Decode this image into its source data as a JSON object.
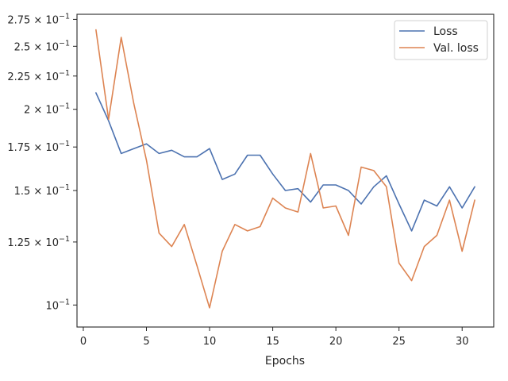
{
  "chart_data": {
    "type": "line",
    "xlabel": "Epochs",
    "ylabel": "",
    "yscale": "log",
    "xlim": [
      -0.5,
      32.5
    ],
    "ylim": [
      0.0925,
      0.28
    ],
    "grid": false,
    "legend_position": "top-right",
    "x_ticks": [
      0,
      5,
      10,
      15,
      20,
      25,
      30
    ],
    "x_tick_labels": [
      "0",
      "5",
      "10",
      "15",
      "20",
      "25",
      "30"
    ],
    "y_ticks": [
      0.1,
      0.125,
      0.15,
      0.175,
      0.2,
      0.225,
      0.25,
      0.275
    ],
    "y_tick_labels": [
      {
        "mantissa": "",
        "base": "10",
        "exp": "−1"
      },
      {
        "mantissa": "1.25 × ",
        "base": "10",
        "exp": "−1"
      },
      {
        "mantissa": "1.5 × ",
        "base": "10",
        "exp": "−1"
      },
      {
        "mantissa": "1.75 × ",
        "base": "10",
        "exp": "−1"
      },
      {
        "mantissa": "2 × ",
        "base": "10",
        "exp": "−1"
      },
      {
        "mantissa": "2.25 × ",
        "base": "10",
        "exp": "−1"
      },
      {
        "mantissa": "2.5 × ",
        "base": "10",
        "exp": "−1"
      },
      {
        "mantissa": "2.75 × ",
        "base": "10",
        "exp": "−1"
      }
    ],
    "x": [
      1,
      2,
      3,
      4,
      5,
      6,
      7,
      8,
      9,
      10,
      11,
      12,
      13,
      14,
      15,
      16,
      17,
      18,
      19,
      20,
      21,
      22,
      23,
      24,
      25,
      26,
      27,
      28,
      29,
      30,
      31
    ],
    "series": [
      {
        "name": "Loss",
        "color": "#4c72b0",
        "values": [
          0.212,
          0.192,
          0.171,
          0.174,
          0.177,
          0.171,
          0.173,
          0.169,
          0.169,
          0.174,
          0.156,
          0.159,
          0.17,
          0.17,
          0.159,
          0.15,
          0.151,
          0.144,
          0.153,
          0.153,
          0.15,
          0.143,
          0.152,
          0.158,
          0.143,
          0.13,
          0.145,
          0.142,
          0.152,
          0.141,
          0.152
        ]
      },
      {
        "name": "Val. loss",
        "color": "#dd8452",
        "values": [
          0.265,
          0.193,
          0.258,
          0.204,
          0.167,
          0.129,
          0.123,
          0.133,
          0.115,
          0.099,
          0.121,
          0.133,
          0.13,
          0.132,
          0.146,
          0.141,
          0.139,
          0.171,
          0.141,
          0.142,
          0.128,
          0.163,
          0.161,
          0.152,
          0.116,
          0.109,
          0.123,
          0.128,
          0.145,
          0.121,
          0.145
        ]
      }
    ]
  }
}
